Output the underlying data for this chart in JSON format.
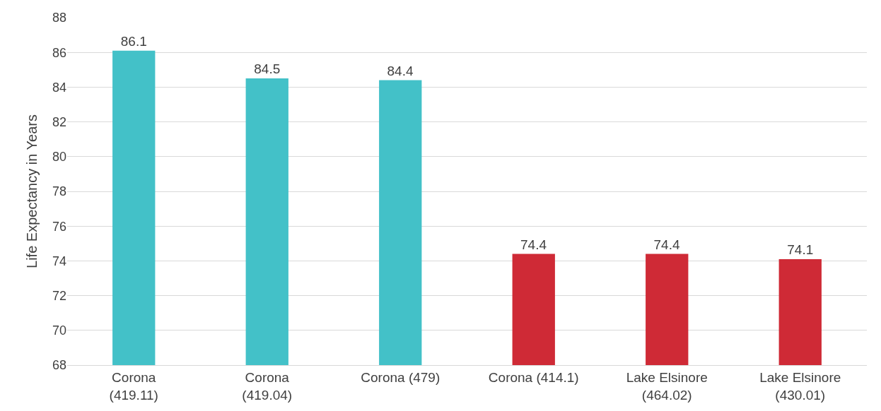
{
  "chart_data": {
    "type": "bar",
    "ylabel": "Life Expectancy in Years",
    "categories": [
      "Corona\n(419.11)",
      "Corona\n(419.04)",
      "Corona (479)",
      "Corona (414.1)",
      "Lake Elsinore\n(464.02)",
      "Lake Elsinore\n(430.01)"
    ],
    "values": [
      86.1,
      84.5,
      84.4,
      74.4,
      74.4,
      74.1
    ],
    "colors": [
      "#43c1c8",
      "#43c1c8",
      "#43c1c8",
      "#cf2a36",
      "#cf2a36",
      "#cf2a36"
    ],
    "ylim": [
      68,
      88
    ],
    "yticks": [
      68,
      70,
      72,
      74,
      76,
      78,
      80,
      82,
      84,
      86,
      88
    ],
    "grid": "y",
    "data_labels": true
  }
}
